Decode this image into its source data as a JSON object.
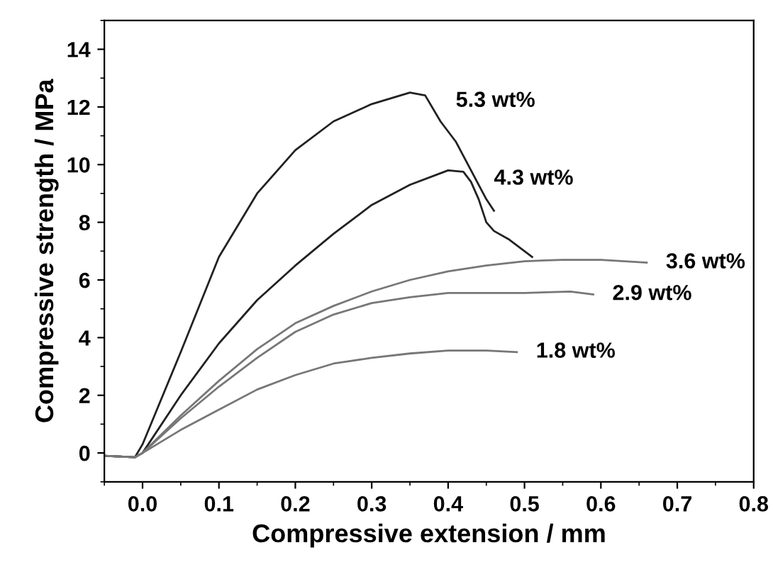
{
  "chart_data": {
    "type": "line",
    "xlabel": "Compressive extension / mm",
    "ylabel": "Compressive strength / MPa",
    "xlim": [
      -0.05,
      0.8
    ],
    "ylim": [
      -1,
      15
    ],
    "xticks": [
      {
        "value": 0,
        "label": "0.0"
      },
      0.1,
      0.2,
      0.3,
      0.4,
      0.5,
      0.6,
      0.7,
      0.8
    ],
    "yticks": [
      0,
      2,
      4,
      6,
      8,
      10,
      12,
      14
    ],
    "grid": false,
    "legend": false,
    "marker": "none",
    "line_style": "solid",
    "series": [
      {
        "name": "5.3 wt%",
        "color": "#222222",
        "x": [
          -0.05,
          -0.01,
          0.0,
          0.05,
          0.1,
          0.15,
          0.2,
          0.25,
          0.3,
          0.35,
          0.37,
          0.39,
          0.41,
          0.43,
          0.45,
          0.46
        ],
        "values": [
          -0.1,
          -0.15,
          0.3,
          3.5,
          6.8,
          9.0,
          10.5,
          11.5,
          12.1,
          12.5,
          12.4,
          11.5,
          10.8,
          9.8,
          8.8,
          8.4
        ]
      },
      {
        "name": "4.3 wt%",
        "color": "#222222",
        "x": [
          -0.05,
          -0.01,
          0.0,
          0.05,
          0.1,
          0.15,
          0.2,
          0.25,
          0.3,
          0.35,
          0.4,
          0.42,
          0.43,
          0.44,
          0.45,
          0.46,
          0.48,
          0.5,
          0.51
        ],
        "values": [
          -0.1,
          -0.15,
          0.0,
          2.0,
          3.8,
          5.3,
          6.5,
          7.6,
          8.6,
          9.3,
          9.8,
          9.75,
          9.4,
          8.8,
          8.0,
          7.7,
          7.4,
          7.0,
          6.8
        ]
      },
      {
        "name": "3.6 wt%",
        "color": "#777777",
        "x": [
          -0.05,
          -0.01,
          0.0,
          0.05,
          0.1,
          0.15,
          0.2,
          0.25,
          0.3,
          0.35,
          0.4,
          0.45,
          0.5,
          0.55,
          0.6,
          0.66
        ],
        "values": [
          -0.1,
          -0.15,
          0.0,
          1.3,
          2.5,
          3.6,
          4.5,
          5.1,
          5.6,
          6.0,
          6.3,
          6.5,
          6.65,
          6.7,
          6.7,
          6.6
        ]
      },
      {
        "name": "2.9 wt%",
        "color": "#777777",
        "x": [
          -0.05,
          -0.01,
          0.0,
          0.05,
          0.1,
          0.15,
          0.2,
          0.25,
          0.3,
          0.35,
          0.4,
          0.45,
          0.5,
          0.56,
          0.59
        ],
        "values": [
          -0.1,
          -0.15,
          0.0,
          1.2,
          2.3,
          3.3,
          4.2,
          4.8,
          5.2,
          5.4,
          5.55,
          5.55,
          5.55,
          5.6,
          5.5
        ]
      },
      {
        "name": "1.8 wt%",
        "color": "#777777",
        "x": [
          -0.05,
          -0.01,
          0.0,
          0.05,
          0.1,
          0.15,
          0.2,
          0.25,
          0.3,
          0.35,
          0.4,
          0.45,
          0.49
        ],
        "values": [
          -0.1,
          -0.15,
          0.0,
          0.8,
          1.5,
          2.2,
          2.7,
          3.1,
          3.3,
          3.45,
          3.55,
          3.55,
          3.5
        ]
      }
    ]
  }
}
